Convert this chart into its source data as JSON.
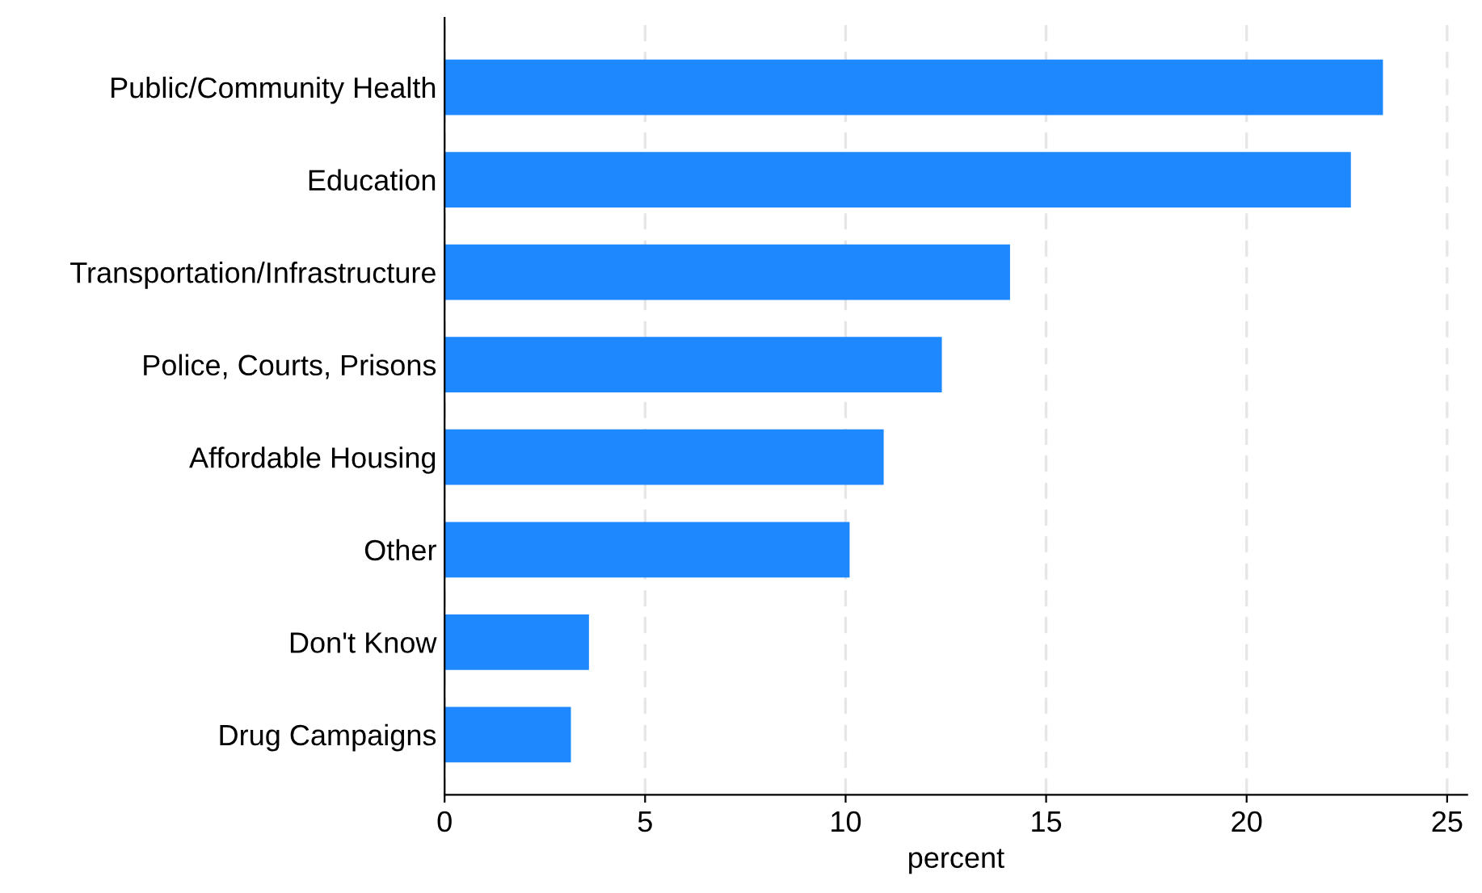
{
  "chart_data": {
    "type": "bar",
    "orientation": "horizontal",
    "xlabel": "percent",
    "categories": [
      "Public/Community Health",
      "Education",
      "Transportation/Infrastructure",
      "Police, Courts, Prisons",
      "Affordable Housing",
      "Other",
      "Don't Know",
      "Drug Campaigns"
    ],
    "values": [
      23.4,
      22.6,
      14.1,
      12.4,
      10.95,
      10.1,
      3.6,
      3.15
    ],
    "color": "#1e88ff",
    "xlim": [
      0,
      25.5
    ],
    "xticks": [
      0,
      5,
      10,
      15,
      20,
      25
    ],
    "grid": "x"
  }
}
